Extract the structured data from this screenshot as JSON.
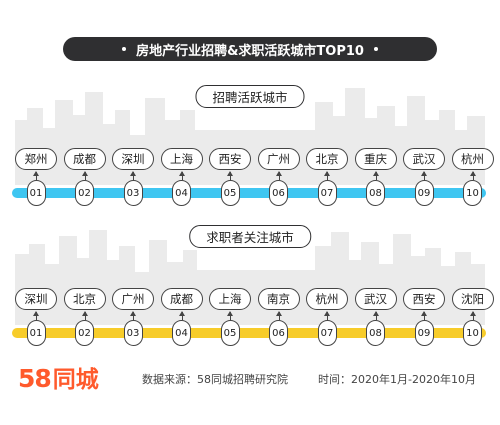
{
  "title": "房地产行业招聘&求职活跃城市TOP10",
  "colors": {
    "title_bg": "#2f2f31",
    "hiring_bar": "#3fc6f1",
    "seeker_bar": "#f7cc2a",
    "skyline": "#ebebeb",
    "logo": "#ff5a2c"
  },
  "chart_data": [
    {
      "type": "table",
      "title": "招聘活跃城市",
      "ranks": [
        "01",
        "02",
        "03",
        "04",
        "05",
        "06",
        "07",
        "08",
        "09",
        "10"
      ],
      "cities": [
        "郑州",
        "成都",
        "深圳",
        "上海",
        "西安",
        "广州",
        "北京",
        "重庆",
        "武汉",
        "杭州"
      ]
    },
    {
      "type": "table",
      "title": "求职者关注城市",
      "ranks": [
        "01",
        "02",
        "03",
        "04",
        "05",
        "06",
        "07",
        "08",
        "09",
        "10"
      ],
      "cities": [
        "深圳",
        "北京",
        "广州",
        "成都",
        "上海",
        "南京",
        "杭州",
        "武汉",
        "西安",
        "沈阳"
      ]
    }
  ],
  "footer": {
    "logo_number": "58",
    "logo_text": "同城",
    "source": "数据来源：58同城招聘研究院",
    "time": "时间：2020年1月-2020年10月"
  }
}
